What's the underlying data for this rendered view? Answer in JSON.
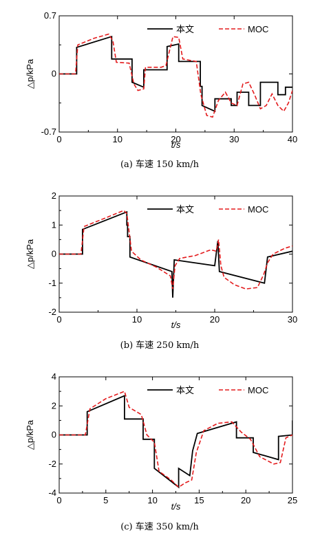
{
  "chart_data": [
    {
      "type": "line",
      "caption": "(a) 车速 150 km/h",
      "xlabel": "t/s",
      "ylabel": "△p/kPa",
      "xlim": [
        0,
        40
      ],
      "ylim": [
        -0.7,
        0.7
      ],
      "xticks": [
        "0",
        "10",
        "20",
        "30",
        "40"
      ],
      "yticks": [
        "-0.7",
        "0",
        "0.7"
      ],
      "legend": "top-right",
      "series": [
        {
          "name": "本文",
          "color": "#000000",
          "style": "solid",
          "x": [
            0,
            3.0,
            3.0,
            9.0,
            9.0,
            12.5,
            12.5,
            14.5,
            14.5,
            18.5,
            18.5,
            20.5,
            20.5,
            24.2,
            24.2,
            24.5,
            24.5,
            26.7,
            26.7,
            29.5,
            29.5,
            30.5,
            30.5,
            32.5,
            32.5,
            34.5,
            34.5,
            35.3,
            35.3,
            37.5,
            37.5,
            38.8,
            38.8,
            40
          ],
          "y": [
            0,
            0,
            0.32,
            0.45,
            0.18,
            0.18,
            -0.1,
            -0.16,
            0.05,
            0.05,
            0.33,
            0.36,
            0.15,
            0.15,
            -0.15,
            -0.15,
            -0.38,
            -0.45,
            -0.3,
            -0.3,
            -0.38,
            -0.38,
            -0.22,
            -0.22,
            -0.38,
            -0.38,
            -0.1,
            -0.1,
            -0.1,
            -0.1,
            -0.25,
            -0.25,
            -0.16,
            -0.16
          ]
        },
        {
          "name": "MOC",
          "color": "#e31a1c",
          "style": "dashed",
          "x": [
            0,
            2.8,
            3.2,
            6.0,
            8.5,
            9.2,
            9.8,
            12.0,
            12.8,
            13.5,
            14.5,
            14.8,
            17.5,
            18.3,
            19.5,
            20.5,
            21.2,
            23.5,
            24.3,
            25.3,
            26.3,
            27.3,
            28.5,
            29.5,
            30.5,
            31.5,
            32.5,
            33.5,
            34.5,
            35.5,
            36.5,
            37.5,
            38.5,
            39.3,
            40
          ],
          "y": [
            0,
            0,
            0.35,
            0.43,
            0.48,
            0.4,
            0.14,
            0.13,
            -0.12,
            -0.2,
            -0.18,
            0.08,
            0.08,
            0.1,
            0.45,
            0.44,
            0.18,
            0.15,
            -0.25,
            -0.5,
            -0.52,
            -0.32,
            -0.22,
            -0.35,
            -0.38,
            -0.12,
            -0.1,
            -0.25,
            -0.42,
            -0.38,
            -0.24,
            -0.38,
            -0.45,
            -0.35,
            -0.2
          ]
        }
      ]
    },
    {
      "type": "line",
      "caption": "(b) 车速 250 km/h",
      "xlabel": "t/s",
      "ylabel": "△p/kPa",
      "xlim": [
        0,
        30
      ],
      "ylim": [
        -2,
        2
      ],
      "xticks": [
        "0",
        "10",
        "20",
        "30"
      ],
      "yticks": [
        "-2",
        "-1",
        "0",
        "1",
        "2"
      ],
      "legend": "top-right",
      "series": [
        {
          "name": "本文",
          "color": "#000000",
          "style": "solid",
          "x": [
            0,
            3.0,
            3.0,
            8.7,
            8.7,
            8.8,
            8.8,
            9.1,
            9.1,
            14.5,
            14.5,
            14.6,
            14.6,
            14.8,
            14.8,
            20.0,
            20.0,
            20.4,
            20.4,
            20.6,
            20.6,
            26.4,
            26.4,
            26.8,
            26.8,
            30
          ],
          "y": [
            0,
            0,
            0.85,
            1.45,
            1.0,
            1.0,
            0.6,
            0.6,
            -0.1,
            -0.6,
            -0.6,
            -1.5,
            -1.5,
            -0.2,
            -0.2,
            -0.4,
            -0.4,
            0.45,
            0.45,
            -0.6,
            -0.6,
            -1.0,
            -1.0,
            -0.1,
            -0.1,
            0.1
          ]
        },
        {
          "name": "MOC",
          "color": "#e31a1c",
          "style": "dashed",
          "x": [
            0,
            2.8,
            3.2,
            6.0,
            8.3,
            8.7,
            9.3,
            10.5,
            12.5,
            14.3,
            14.6,
            14.9,
            15.5,
            17.5,
            19.5,
            20.2,
            20.5,
            20.8,
            21.2,
            22.5,
            24.0,
            25.5,
            26.3,
            26.8,
            27.5,
            29.0,
            30
          ],
          "y": [
            0,
            0,
            0.95,
            1.25,
            1.5,
            1.4,
            0.1,
            -0.2,
            -0.45,
            -0.75,
            -1.2,
            -0.4,
            -0.15,
            -0.05,
            0.15,
            0.1,
            0.5,
            -0.4,
            -0.8,
            -1.05,
            -1.2,
            -1.15,
            -0.7,
            -0.3,
            0.0,
            0.2,
            0.28
          ]
        }
      ]
    },
    {
      "type": "line",
      "caption": "(c) 车速 350 km/h",
      "xlabel": "t/s",
      "ylabel": "△p/kPa",
      "xlim": [
        0,
        25
      ],
      "ylim": [
        -4,
        4
      ],
      "xticks": [
        "0",
        "5",
        "10",
        "15",
        "20",
        "25"
      ],
      "yticks": [
        "-4",
        "-2",
        "0",
        "2",
        "4"
      ],
      "legend": "top-right",
      "series": [
        {
          "name": "本文",
          "color": "#000000",
          "style": "solid",
          "x": [
            0,
            3.0,
            3.0,
            7.0,
            7.0,
            9.0,
            9.0,
            10.2,
            10.2,
            12.8,
            12.8,
            14.0,
            14.0,
            14.3,
            14.3,
            14.8,
            14.8,
            19.0,
            19.0,
            20.8,
            20.8,
            23.5,
            23.5,
            25.0,
            25.0
          ],
          "y": [
            0,
            0,
            1.6,
            2.7,
            1.1,
            1.1,
            -0.3,
            -0.3,
            -2.3,
            -3.6,
            -2.3,
            -2.8,
            -2.8,
            -1.1,
            -1.1,
            0.1,
            0.1,
            0.9,
            -0.2,
            -0.2,
            -1.2,
            -1.7,
            -0.1,
            0.0,
            1.0
          ]
        },
        {
          "name": "MOC",
          "color": "#e31a1c",
          "style": "dashed",
          "x": [
            0,
            2.8,
            3.3,
            5.0,
            7.0,
            7.5,
            8.8,
            9.4,
            10.2,
            10.7,
            12.0,
            12.8,
            13.5,
            14.2,
            14.7,
            15.5,
            17.0,
            18.5,
            19.5,
            20.5,
            21.5,
            23.0,
            23.7,
            24.3,
            25.0
          ],
          "y": [
            0,
            0,
            1.8,
            2.5,
            3.0,
            1.9,
            1.4,
            0.0,
            -0.5,
            -2.5,
            -3.1,
            -3.6,
            -3.3,
            -3.1,
            -1.2,
            0.3,
            0.8,
            0.9,
            0.2,
            -0.3,
            -1.5,
            -2.0,
            -1.9,
            -0.2,
            0.0
          ]
        }
      ]
    }
  ]
}
